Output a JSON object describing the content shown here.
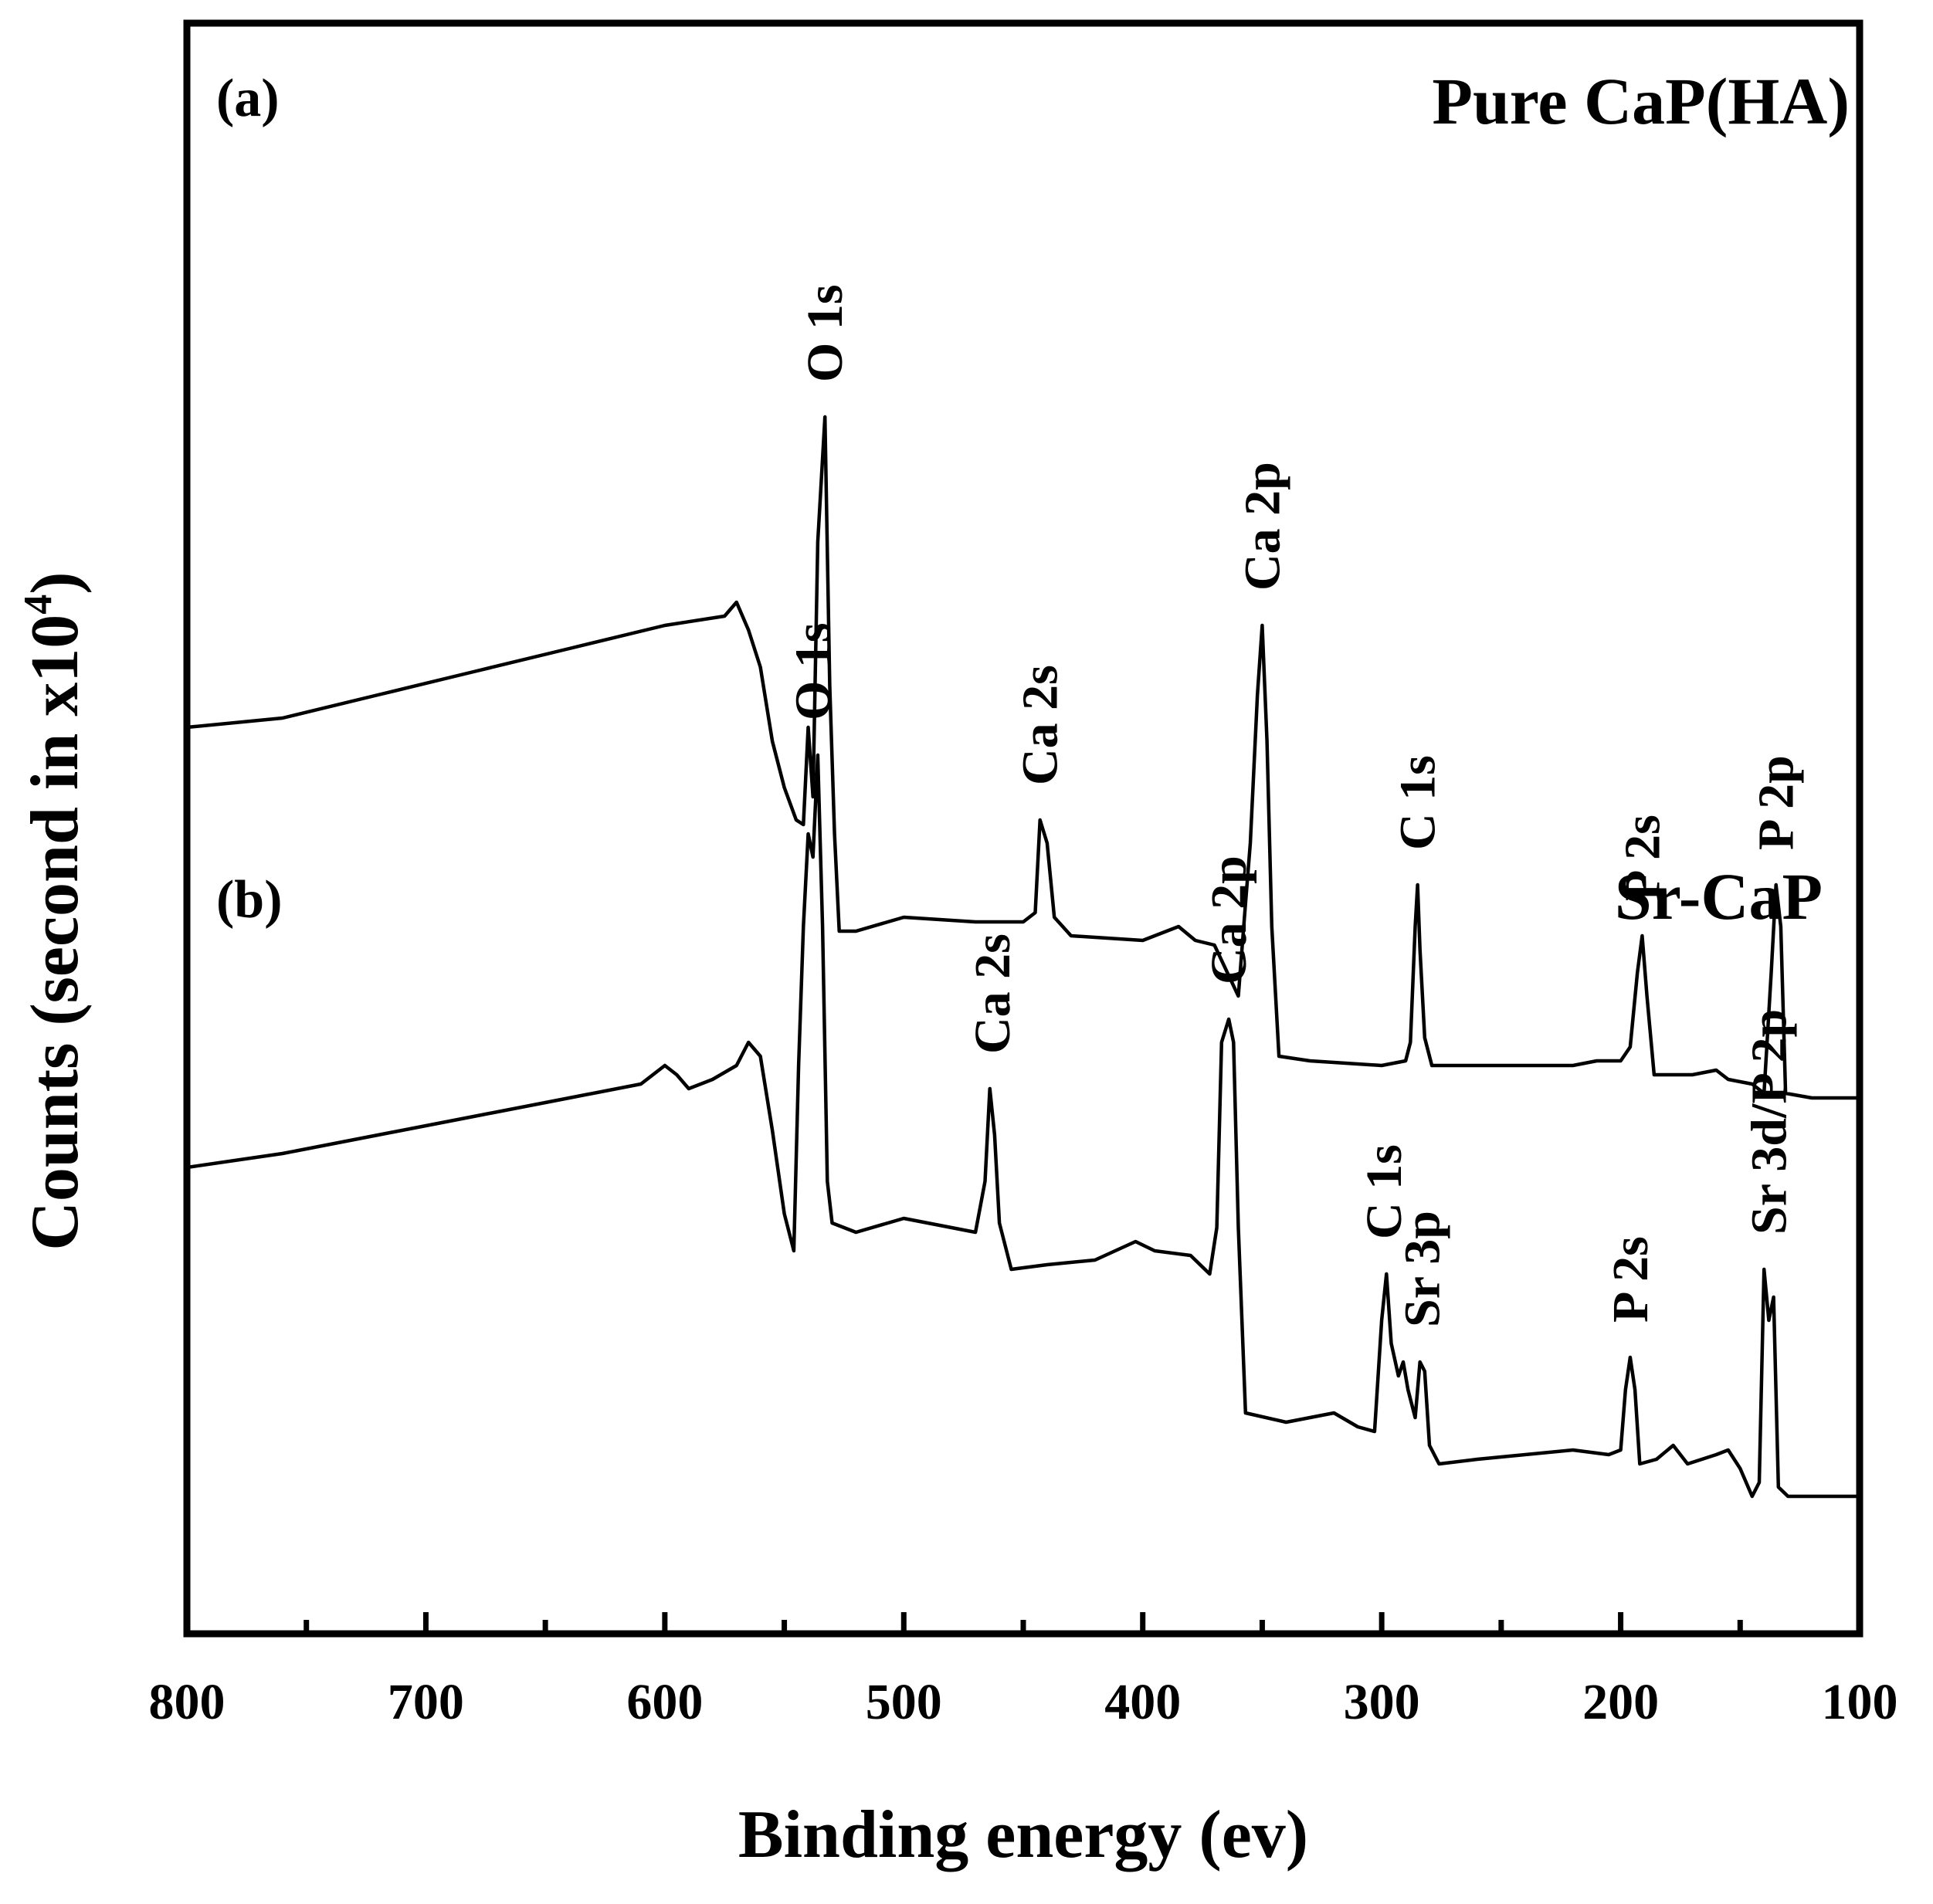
{
  "chart_data": {
    "type": "line",
    "title": "",
    "xlabel": "Binding energy (ev)",
    "ylabel": "Counts (second in x10",
    "ylabel_superscript": "4",
    "ylabel_close": ")",
    "xlim": [
      800,
      100
    ],
    "x_reversed": true,
    "x_ticks": [
      800,
      700,
      600,
      500,
      400,
      300,
      200,
      100
    ],
    "y_ticks_shown": false,
    "grid": false,
    "y_units": "counts (x10^4), relative; panels stacked with vertical offset",
    "series": [
      {
        "name": "Pure CaP(HA)",
        "panel": "(a)",
        "baseline_offset": 10,
        "points": [
          [
            800,
            3.3
          ],
          [
            760,
            3.5
          ],
          [
            720,
            4.0
          ],
          [
            680,
            4.5
          ],
          [
            640,
            5.0
          ],
          [
            600,
            5.5
          ],
          [
            575,
            5.7
          ],
          [
            570,
            6.0
          ],
          [
            565,
            5.4
          ],
          [
            560,
            4.6
          ],
          [
            555,
            3.0
          ],
          [
            550,
            2.0
          ],
          [
            545,
            1.3
          ],
          [
            542,
            1.2
          ],
          [
            540,
            3.3
          ],
          [
            538,
            1.8
          ],
          [
            536,
            7.3
          ],
          [
            533,
            10.0
          ],
          [
            531,
            4.2
          ],
          [
            529,
            1.0
          ],
          [
            527,
            -1.1
          ],
          [
            520,
            -1.1
          ],
          [
            500,
            -0.8
          ],
          [
            470,
            -0.9
          ],
          [
            450,
            -0.9
          ],
          [
            445,
            -0.7
          ],
          [
            443,
            1.3
          ],
          [
            440,
            0.8
          ],
          [
            437,
            -0.8
          ],
          [
            430,
            -1.2
          ],
          [
            400,
            -1.3
          ],
          [
            385,
            -1.0
          ],
          [
            378,
            -1.3
          ],
          [
            370,
            -1.4
          ],
          [
            360,
            -2.5
          ],
          [
            357,
            -0.5
          ],
          [
            355,
            0.8
          ],
          [
            352,
            4.0
          ],
          [
            350,
            5.5
          ],
          [
            348,
            3.0
          ],
          [
            346,
            -1.0
          ],
          [
            343,
            -3.8
          ],
          [
            330,
            -3.9
          ],
          [
            300,
            -4.0
          ],
          [
            290,
            -3.9
          ],
          [
            288,
            -3.5
          ],
          [
            286,
            -1.0
          ],
          [
            285,
            -0.1
          ],
          [
            284,
            -1.5
          ],
          [
            282,
            -3.4
          ],
          [
            279,
            -4.0
          ],
          [
            260,
            -4.0
          ],
          [
            220,
            -4.0
          ],
          [
            210,
            -3.9
          ],
          [
            200,
            -3.9
          ],
          [
            196,
            -3.6
          ],
          [
            193,
            -2.0
          ],
          [
            191,
            -1.2
          ],
          [
            189,
            -2.5
          ],
          [
            186,
            -4.2
          ],
          [
            170,
            -4.2
          ],
          [
            160,
            -4.1
          ],
          [
            155,
            -4.3
          ],
          [
            145,
            -4.4
          ],
          [
            140,
            -4.6
          ],
          [
            137,
            -2.0
          ],
          [
            135,
            -0.1
          ],
          [
            133,
            -1.0
          ],
          [
            131,
            -4.6
          ],
          [
            120,
            -4.7
          ],
          [
            100,
            -4.7
          ]
        ],
        "peak_labels": [
          "O 1s",
          "Ca 2s",
          "Ca 2p",
          "C 1s",
          "P 2s",
          "P 2p"
        ]
      },
      {
        "name": "Sr-CaP",
        "panel": "(b)",
        "baseline_offset": 0,
        "points": [
          [
            800,
            3.8
          ],
          [
            760,
            4.1
          ],
          [
            720,
            4.5
          ],
          [
            680,
            4.9
          ],
          [
            640,
            5.3
          ],
          [
            610,
            5.6
          ],
          [
            600,
            6.0
          ],
          [
            595,
            5.8
          ],
          [
            590,
            5.5
          ],
          [
            580,
            5.7
          ],
          [
            570,
            6.0
          ],
          [
            565,
            6.5
          ],
          [
            560,
            6.2
          ],
          [
            555,
            4.6
          ],
          [
            550,
            2.8
          ],
          [
            546,
            2.0
          ],
          [
            544,
            6.0
          ],
          [
            542,
            9.0
          ],
          [
            540,
            11.0
          ],
          [
            538,
            10.5
          ],
          [
            536,
            12.7
          ],
          [
            534,
            9.0
          ],
          [
            532,
            3.5
          ],
          [
            530,
            2.6
          ],
          [
            520,
            2.4
          ],
          [
            500,
            2.7
          ],
          [
            480,
            2.5
          ],
          [
            470,
            2.4
          ],
          [
            466,
            3.5
          ],
          [
            464,
            5.5
          ],
          [
            462,
            4.5
          ],
          [
            460,
            2.6
          ],
          [
            455,
            1.6
          ],
          [
            440,
            1.7
          ],
          [
            420,
            1.8
          ],
          [
            403,
            2.2
          ],
          [
            395,
            2.0
          ],
          [
            380,
            1.9
          ],
          [
            372,
            1.5
          ],
          [
            369,
            2.5
          ],
          [
            367,
            6.5
          ],
          [
            364,
            7.0
          ],
          [
            362,
            6.5
          ],
          [
            360,
            2.5
          ],
          [
            357,
            -1.5
          ],
          [
            340,
            -1.7
          ],
          [
            320,
            -1.5
          ],
          [
            310,
            -1.8
          ],
          [
            303,
            -1.9
          ],
          [
            300,
            0.5
          ],
          [
            298,
            1.5
          ],
          [
            296,
            0.0
          ],
          [
            293,
            -0.7
          ],
          [
            291,
            -0.4
          ],
          [
            289,
            -1.0
          ],
          [
            286,
            -1.6
          ],
          [
            284,
            -0.4
          ],
          [
            282,
            -0.6
          ],
          [
            280,
            -2.2
          ],
          [
            276,
            -2.6
          ],
          [
            260,
            -2.5
          ],
          [
            220,
            -2.3
          ],
          [
            205,
            -2.4
          ],
          [
            200,
            -2.3
          ],
          [
            198,
            -1.0
          ],
          [
            196,
            -0.3
          ],
          [
            194,
            -1.0
          ],
          [
            192,
            -2.6
          ],
          [
            185,
            -2.5
          ],
          [
            178,
            -2.2
          ],
          [
            172,
            -2.6
          ],
          [
            160,
            -2.4
          ],
          [
            155,
            -2.3
          ],
          [
            150,
            -2.7
          ],
          [
            145,
            -3.3
          ],
          [
            142,
            -3.0
          ],
          [
            140,
            1.6
          ],
          [
            138,
            0.5
          ],
          [
            136,
            1.0
          ],
          [
            134,
            -3.1
          ],
          [
            130,
            -3.3
          ],
          [
            100,
            -3.3
          ]
        ],
        "peak_labels": [
          "O 1s",
          "Ca 2s",
          "Ca 2p",
          "C 1s",
          "Sr 3p",
          "P 2s",
          "Sr 3d/P 2p"
        ]
      }
    ],
    "annotations": [
      {
        "panel": "(a)",
        "text": "O 1s",
        "x": 533,
        "y": 10.0
      },
      {
        "panel": "(a)",
        "text": "Ca 2s",
        "x": 443,
        "y": 1.3
      },
      {
        "panel": "(a)",
        "text": "Ca 2p",
        "x": 350,
        "y": 5.5
      },
      {
        "panel": "(a)",
        "text": "C 1s",
        "x": 285,
        "y": -0.1
      },
      {
        "panel": "(a)",
        "text": "P 2s",
        "x": 191,
        "y": -1.2
      },
      {
        "panel": "(a)",
        "text": "P 2p",
        "x": 135,
        "y": -0.1
      },
      {
        "panel": "(b)",
        "text": "O 1s",
        "x": 538,
        "y": 12.7
      },
      {
        "panel": "(b)",
        "text": "Ca 2s",
        "x": 463,
        "y": 5.5
      },
      {
        "panel": "(b)",
        "text": "Ca 2p",
        "x": 364,
        "y": 7.0
      },
      {
        "panel": "(b)",
        "text": "C 1s",
        "x": 299,
        "y": 1.5
      },
      {
        "panel": "(b)",
        "text": "Sr 3p",
        "x": 283,
        "y": -0.4
      },
      {
        "panel": "(b)",
        "text": "P 2s",
        "x": 196,
        "y": -0.3
      },
      {
        "panel": "(b)",
        "text": "Sr 3d/P 2p",
        "x": 138,
        "y": 1.6
      }
    ]
  },
  "panel_a": {
    "tag": "(a)",
    "title": "Pure CaP(HA)"
  },
  "panel_b": {
    "tag": "(b)",
    "title": "Sr-CaP"
  },
  "colors": {
    "ylabel": "#8B5A00",
    "line": "#000000"
  }
}
